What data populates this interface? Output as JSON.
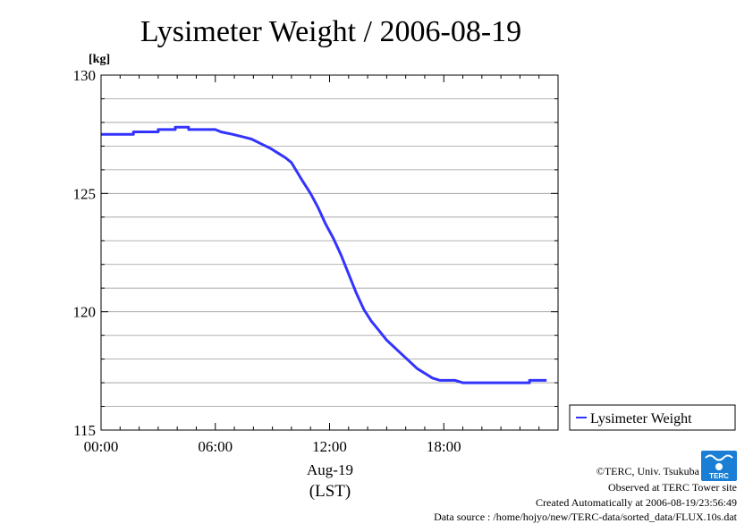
{
  "chart_data": {
    "type": "line",
    "title": "Lysimeter Weight / 2006-08-19",
    "ylabel": "",
    "y_unit": "[kg]",
    "xlabel": "(LST)",
    "x_date_label": "Aug-19",
    "xlim": [
      0,
      24
    ],
    "ylim": [
      115,
      130
    ],
    "x_tick_labels": [
      "00:00",
      "06:00",
      "12:00",
      "18:00"
    ],
    "x_tick_values": [
      0,
      6,
      12,
      18
    ],
    "y_tick_labels": [
      "115",
      "120",
      "125",
      "130"
    ],
    "y_tick_values": [
      115,
      120,
      125,
      130
    ],
    "grid": true,
    "legend_position": "bottom-right, outside plot",
    "series": [
      {
        "name": "Lysimeter Weight",
        "color": "#3333ff",
        "x": [
          0,
          1.7,
          1.7,
          3.0,
          3.0,
          3.9,
          3.9,
          4.6,
          4.6,
          6.0,
          6.3,
          6.9,
          7.4,
          7.9,
          8.4,
          8.9,
          9.3,
          9.7,
          10.0,
          10.3,
          10.6,
          11.0,
          11.4,
          11.8,
          12.2,
          12.6,
          13.0,
          13.4,
          13.8,
          14.2,
          14.6,
          15.0,
          15.4,
          15.8,
          16.2,
          16.6,
          17.0,
          17.4,
          17.8,
          18.2,
          18.6,
          19.0,
          19.6,
          20.2,
          21.0,
          22.0,
          22.5,
          22.5,
          23.4
        ],
        "y": [
          127.5,
          127.5,
          127.6,
          127.6,
          127.7,
          127.7,
          127.8,
          127.8,
          127.7,
          127.7,
          127.6,
          127.5,
          127.4,
          127.3,
          127.1,
          126.9,
          126.7,
          126.5,
          126.3,
          125.9,
          125.5,
          125.0,
          124.4,
          123.7,
          123.1,
          122.4,
          121.6,
          120.8,
          120.1,
          119.6,
          119.2,
          118.8,
          118.5,
          118.2,
          117.9,
          117.6,
          117.4,
          117.2,
          117.1,
          117.1,
          117.1,
          117.0,
          117.0,
          117.0,
          117.0,
          117.0,
          117.0,
          117.1,
          117.1
        ]
      }
    ]
  },
  "footer": {
    "copyright": "©TERC, Univ. Tsukuba",
    "site": "Observed at TERC Tower site",
    "created": "Created Automatically at 2006-08-19/23:56:49",
    "source": "Data source : /home/hojyo/new/TERC-data/sorted_data/FLUX.10s.dat"
  },
  "logo": {
    "text": "TERC",
    "color": "#1a7fd4"
  }
}
